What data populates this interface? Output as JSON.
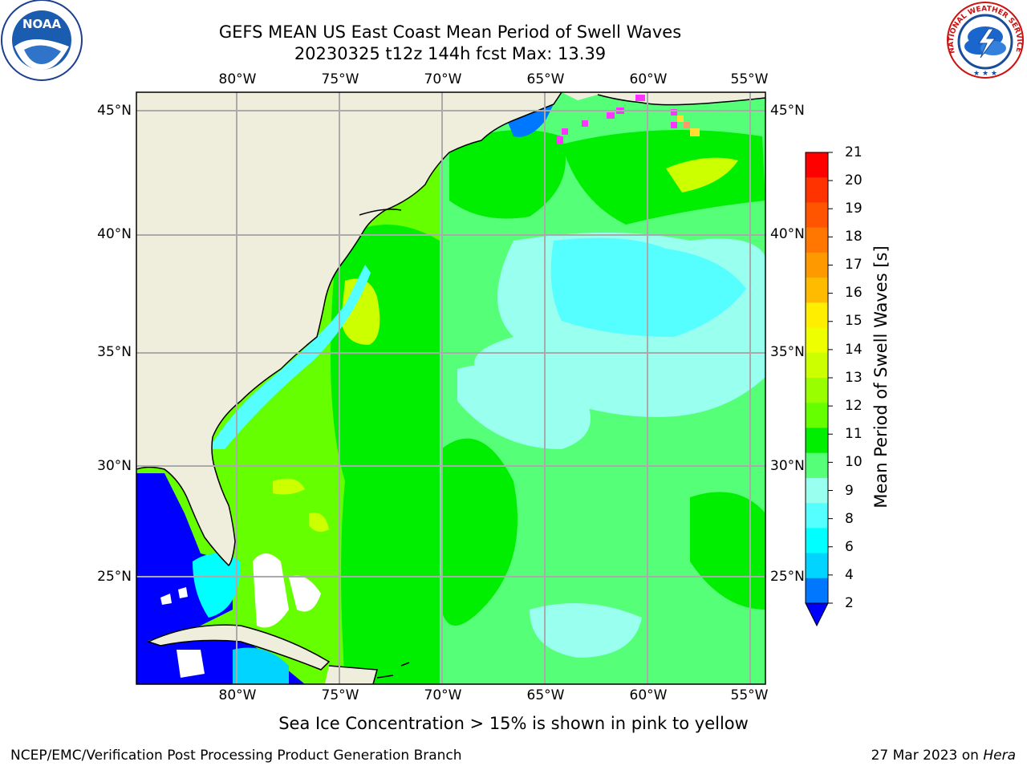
{
  "title": {
    "line1": "GEFS MEAN US East Coast Mean Period of Swell Waves",
    "line2": "20230325 t12z 144h fcst   Max: 13.39"
  },
  "map": {
    "lon_labels": [
      "80°W",
      "75°W",
      "70°W",
      "65°W",
      "60°W",
      "55°W"
    ],
    "lat_labels": [
      "45°N",
      "40°N",
      "35°N",
      "30°N",
      "25°N"
    ],
    "colors": {
      "land": "#efeedd",
      "grid": "#aaaaaa",
      "ice_pink": "#ff33ff",
      "ice_yellow": "#ffdd33"
    }
  },
  "colorbar": {
    "label": "Mean Period of Swell Waves [s]",
    "ticks": [
      "21",
      "20",
      "19",
      "18",
      "17",
      "16",
      "15",
      "14",
      "13",
      "12",
      "11",
      "10",
      "9",
      "8",
      "6",
      "4",
      "2"
    ],
    "colors": [
      "#ff0000",
      "#ff3300",
      "#ff5500",
      "#ff7700",
      "#ff9900",
      "#ffbb00",
      "#ffee00",
      "#eeff00",
      "#ccff00",
      "#99ff00",
      "#66ff00",
      "#00ee00",
      "#55ff77",
      "#99ffee",
      "#55ffff",
      "#00ffff",
      "#00d4ff",
      "#0077ff",
      "#0000ff"
    ]
  },
  "note": "Sea Ice Concentration > 15% is shown in pink to yellow",
  "footer": {
    "left": "NCEP/EMC/Verification Post Processing Product Generation Branch",
    "right_date": "27 Mar 2023 on ",
    "right_machine": "Hera"
  },
  "logos": {
    "noaa_text": "NOAA",
    "nws_text": "NATIONAL WEATHER SERVICE"
  }
}
